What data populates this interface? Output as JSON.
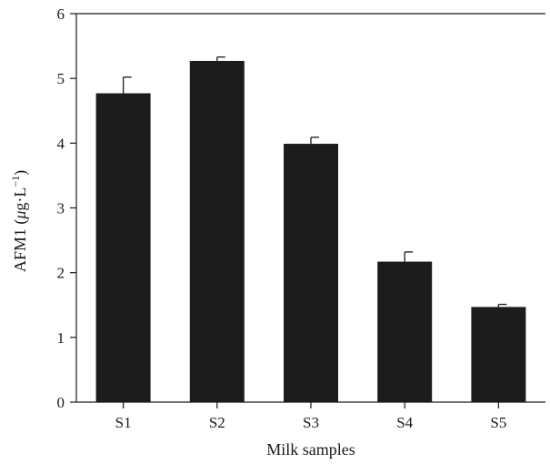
{
  "chart_data": {
    "type": "bar",
    "title": "",
    "xlabel": "Milk samples",
    "ylabel": "AFM1 (μg·L⁻¹)",
    "ylabel_parts": {
      "prefix": "AFM1 (",
      "mu": "μ",
      "unit": "g·L",
      "exponent": "−1",
      "suffix": ")"
    },
    "categories": [
      "S1",
      "S2",
      "S3",
      "S4",
      "S5"
    ],
    "values": [
      4.77,
      5.27,
      3.99,
      2.17,
      1.47
    ],
    "errors": [
      0.25,
      0.06,
      0.1,
      0.15,
      0.04
    ],
    "ylim": [
      0,
      6
    ],
    "yticks": [
      "0",
      "1",
      "2",
      "3",
      "4",
      "5",
      "6"
    ],
    "bar_color": "#1c1c1c",
    "grid": false,
    "legend": "none"
  }
}
